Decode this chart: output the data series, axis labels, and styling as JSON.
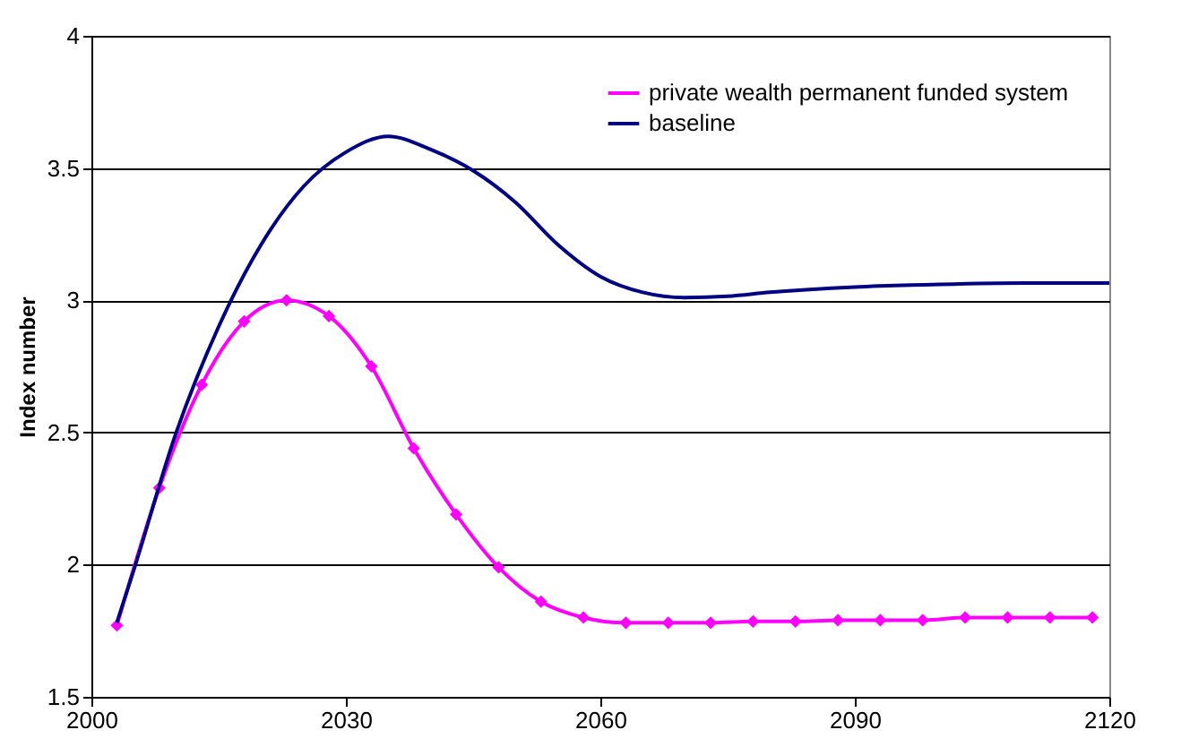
{
  "chart_data": {
    "type": "line",
    "ylabel": "Index number",
    "xlim": [
      2000,
      2120
    ],
    "xticks": [
      2000,
      2030,
      2060,
      2090,
      2120
    ],
    "ylim": [
      1.5,
      4
    ],
    "yticks": [
      1.5,
      2,
      2.5,
      3,
      3.5,
      4
    ],
    "grid": "y",
    "legend": "top right",
    "series": [
      {
        "name": "private wealth permanent funded system",
        "color": "#ff00ff",
        "marker": "diamond",
        "x": [
          2003,
          2008,
          2013,
          2018,
          2023,
          2028,
          2033,
          2038,
          2043,
          2048,
          2053,
          2058,
          2063,
          2068,
          2073,
          2078,
          2083,
          2088,
          2093,
          2098,
          2103,
          2108,
          2113,
          2118
        ],
        "values": [
          1.77,
          2.29,
          2.68,
          2.92,
          3.0,
          2.94,
          2.75,
          2.44,
          2.19,
          1.99,
          1.86,
          1.8,
          1.78,
          1.78,
          1.78,
          1.785,
          1.785,
          1.79,
          1.79,
          1.79,
          1.8,
          1.8,
          1.8,
          1.8
        ]
      },
      {
        "name": "baseline",
        "color": "#000080",
        "marker": "none",
        "x": [
          2003,
          2005,
          2010,
          2015,
          2020,
          2025,
          2030,
          2035,
          2040,
          2045,
          2050,
          2055,
          2060,
          2065,
          2070,
          2075,
          2080,
          2090,
          2100,
          2110,
          2120
        ],
        "values": [
          1.78,
          1.98,
          2.5,
          2.9,
          3.21,
          3.43,
          3.56,
          3.62,
          3.57,
          3.49,
          3.37,
          3.21,
          3.09,
          3.03,
          3.01,
          3.015,
          3.03,
          3.05,
          3.06,
          3.065,
          3.065
        ]
      }
    ]
  }
}
